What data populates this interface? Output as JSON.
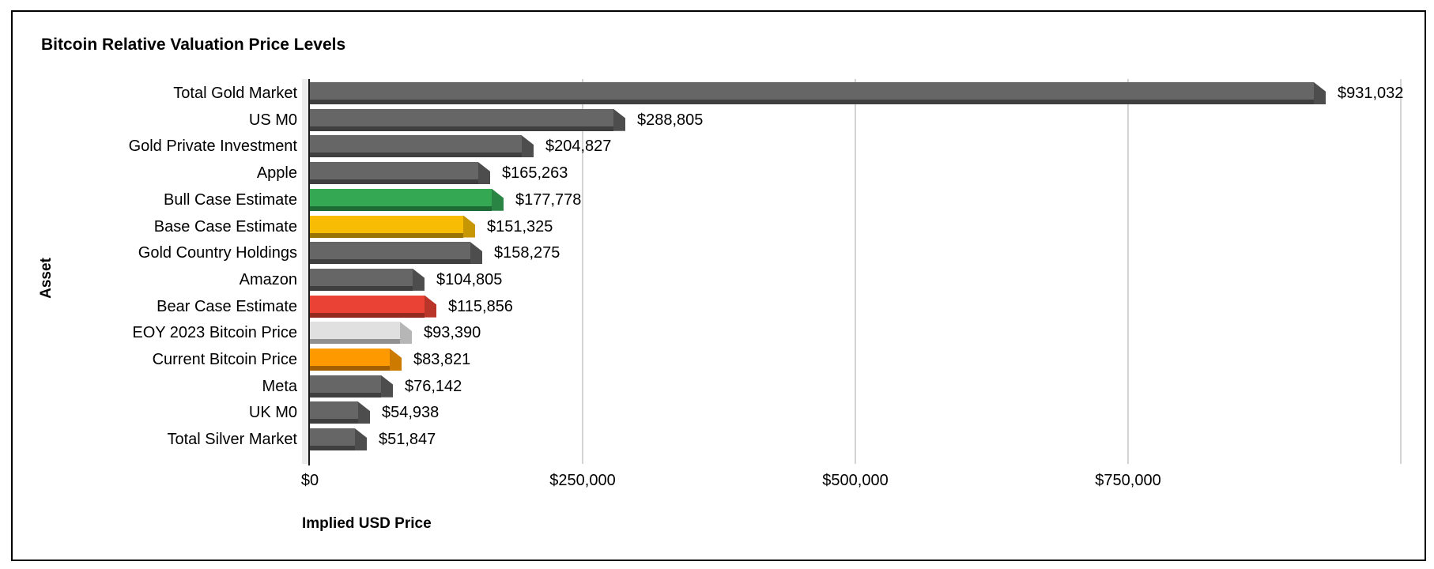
{
  "title": "Bitcoin Relative Valuation Price Levels",
  "chart_data": {
    "type": "bar",
    "orientation": "horizontal",
    "title": "Bitcoin Relative Valuation Price Levels",
    "xlabel": "Implied USD Price",
    "ylabel": "Asset",
    "xlim": [
      0,
      1000000
    ],
    "grid": true,
    "legend": "none",
    "x_ticks": [
      {
        "value": 0,
        "label": "$0"
      },
      {
        "value": 250000,
        "label": "$250,000"
      },
      {
        "value": 500000,
        "label": "$500,000"
      },
      {
        "value": 750000,
        "label": "$750,000"
      },
      {
        "value": 1000000,
        "label": ""
      }
    ],
    "categories": [
      "Total Gold Market",
      "US M0",
      "Gold Private Investment",
      "Apple",
      "Bull Case Estimate",
      "Base Case Estimate",
      "Gold Country Holdings",
      "Amazon",
      "Bear Case Estimate",
      "EOY 2023 Bitcoin Price",
      "Current Bitcoin Price",
      "Meta",
      "UK M0",
      "Total Silver Market"
    ],
    "values": [
      931032,
      288805,
      204827,
      165263,
      177778,
      151325,
      158275,
      104805,
      115856,
      93390,
      83821,
      76142,
      54938,
      51847
    ],
    "value_labels": [
      "$931,032",
      "$288,805",
      "$204,827",
      "$165,263",
      "$177,778",
      "$151,325",
      "$158,275",
      "$104,805",
      "$115,856",
      "$93,390",
      "$83,821",
      "$76,142",
      "$54,938",
      "$51,847"
    ],
    "bar_color_roles": [
      "gray",
      "gray",
      "gray",
      "gray",
      "green",
      "yellow",
      "gray",
      "gray",
      "red",
      "lightgray",
      "orange",
      "gray",
      "gray",
      "gray"
    ]
  },
  "palette": {
    "gray": {
      "fill": "#666666",
      "strip": "#3f3f3f",
      "cap": "#4d4d4d"
    },
    "green": {
      "fill": "#34a853",
      "strip": "#1e6b35",
      "cap": "#2a8443"
    },
    "yellow": {
      "fill": "#f9bc05",
      "strip": "#997403",
      "cap": "#c79603"
    },
    "red": {
      "fill": "#ea4335",
      "strip": "#93291f",
      "cap": "#ba3529"
    },
    "lightgray": {
      "fill": "#e0e0e0",
      "strip": "#909090",
      "cap": "#b6b6b6"
    },
    "orange": {
      "fill": "#ff9900",
      "strip": "#a35f02",
      "cap": "#cc7a00"
    }
  },
  "colors": {
    "gridline": "#d4d4d4",
    "axis": "#1a1a1a",
    "wall": "#ececec",
    "text": "#000000",
    "background": "#ffffff"
  }
}
